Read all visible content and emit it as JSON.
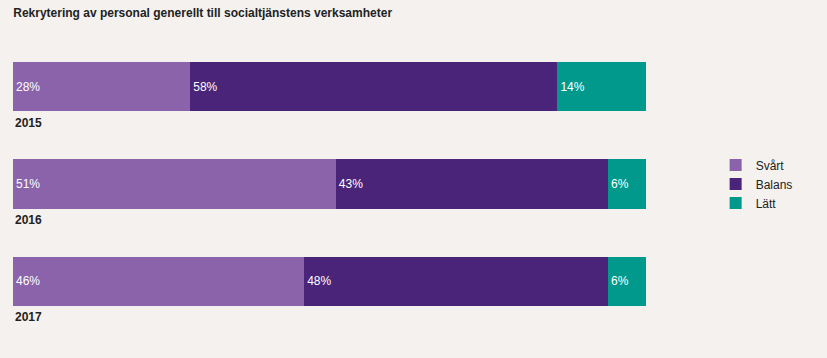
{
  "chart_data": {
    "type": "bar",
    "title": "Rekrytering av personal generellt till socialtjänstens verksamheter",
    "orientation": "horizontal",
    "stacked": true,
    "data_labels": true,
    "legend": "right",
    "categories": [
      "2015",
      "2016",
      "2017"
    ],
    "xlim": [
      0,
      100
    ],
    "series": [
      {
        "name": "Svårt",
        "color": "#8a63ab",
        "values": [
          28,
          51,
          46
        ],
        "value_labels": [
          "28%",
          "51%",
          "46%"
        ]
      },
      {
        "name": "Balans",
        "color": "#4a2478",
        "values": [
          58,
          43,
          48
        ],
        "value_labels": [
          "58%",
          "43%",
          "48%"
        ]
      },
      {
        "name": "Lätt",
        "color": "#00998b",
        "values": [
          14,
          6,
          6
        ],
        "value_labels": [
          "14%",
          "6%",
          "6%"
        ]
      }
    ]
  }
}
